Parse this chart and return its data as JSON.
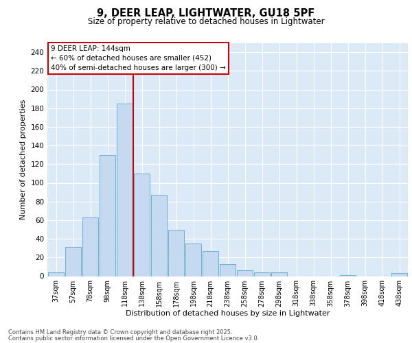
{
  "title_line1": "9, DEER LEAP, LIGHTWATER, GU18 5PF",
  "title_line2": "Size of property relative to detached houses in Lightwater",
  "xlabel": "Distribution of detached houses by size in Lightwater",
  "ylabel": "Number of detached properties",
  "bar_labels": [
    "37sqm",
    "57sqm",
    "78sqm",
    "98sqm",
    "118sqm",
    "138sqm",
    "158sqm",
    "178sqm",
    "198sqm",
    "218sqm",
    "238sqm",
    "258sqm",
    "278sqm",
    "298sqm",
    "318sqm",
    "338sqm",
    "358sqm",
    "378sqm",
    "398sqm",
    "418sqm",
    "438sqm"
  ],
  "bar_values": [
    4,
    31,
    63,
    130,
    185,
    110,
    87,
    50,
    35,
    27,
    13,
    6,
    4,
    4,
    0,
    0,
    0,
    1,
    0,
    0,
    3
  ],
  "bar_color": "#c5d9f0",
  "bar_edgecolor": "#6baed6",
  "background_color": "#dce9f7",
  "grid_color": "#ffffff",
  "vline_color": "#cc0000",
  "annotation_title": "9 DEER LEAP: 144sqm",
  "annotation_line1": "← 60% of detached houses are smaller (452)",
  "annotation_line2": "40% of semi-detached houses are larger (300) →",
  "annotation_box_edgecolor": "#cc0000",
  "ylim": [
    0,
    250
  ],
  "yticks": [
    0,
    20,
    40,
    60,
    80,
    100,
    120,
    140,
    160,
    180,
    200,
    220,
    240
  ],
  "footer_line1": "Contains HM Land Registry data © Crown copyright and database right 2025.",
  "footer_line2": "Contains public sector information licensed under the Open Government Licence v3.0.",
  "vline_bar_index": 5
}
